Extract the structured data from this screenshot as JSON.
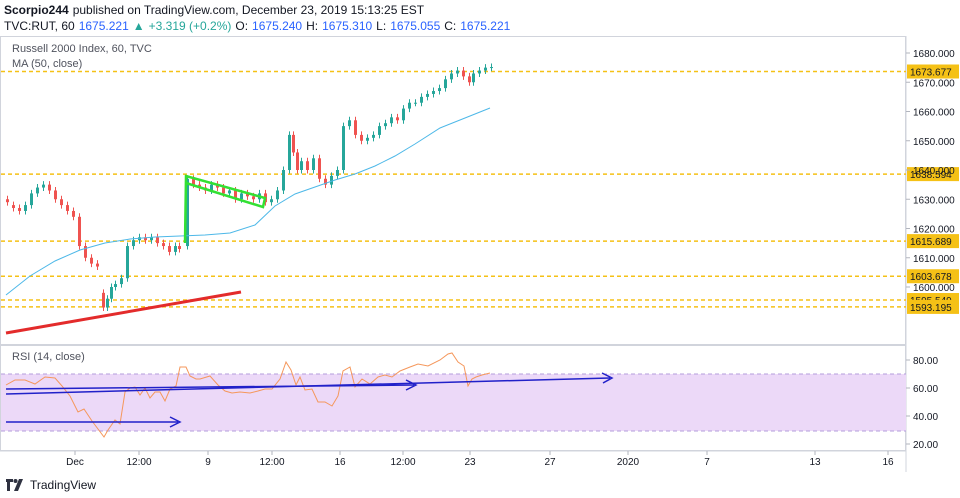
{
  "header": {
    "author": "Scorpio244",
    "published_text": "published on TradingView.com, December 23, 2019 15:13:25 EST",
    "symbol_line": "TVC:RUT, 60",
    "last": "1675.221",
    "change": "+3.319 (+0.2%)",
    "open_label": "O:",
    "open": "1675.240",
    "high_label": "H:",
    "high": "1675.310",
    "low_label": "L:",
    "low": "1675.055",
    "close_label": "C:",
    "close": "1675.221"
  },
  "chart": {
    "title": "Russell 2000 Index, 60, TVC",
    "ma_label": "MA (50, close)",
    "rsi_label": "RSI (14, close)",
    "price_ticks": [
      "1680.000",
      "1670.000",
      "1660.000",
      "1650.000",
      "1640.000",
      "1630.000",
      "1620.000",
      "1610.000",
      "1600.000"
    ],
    "price_levels": [
      {
        "label": "1673.677",
        "value": 1673.677
      },
      {
        "label": "1638.594",
        "value": 1638.594
      },
      {
        "label": "1615.689",
        "value": 1615.689
      },
      {
        "label": "1603.678",
        "value": 1603.678
      },
      {
        "label": "1595.549",
        "value": 1595.549
      },
      {
        "label": "1593.195",
        "value": 1593.195
      }
    ],
    "rsi_ticks": [
      "80.00",
      "60.00",
      "40.00",
      "20.00"
    ],
    "time_ticks": [
      "Dec",
      "12:00",
      "9",
      "12:00",
      "16",
      "12:00",
      "23",
      "27",
      "2020",
      "7",
      "13",
      "16"
    ],
    "colors": {
      "level": "#f5c116",
      "ma": "#4db8e8",
      "up": "#26a69a",
      "down": "#ef5350",
      "trend": "#e32b2b",
      "flag": "#33e033",
      "rsi_line": "#f5975b",
      "rsi_band": "#ecd9f8",
      "rsi_arrow": "#2121c9"
    }
  },
  "footer": {
    "brand": "TradingView"
  }
}
